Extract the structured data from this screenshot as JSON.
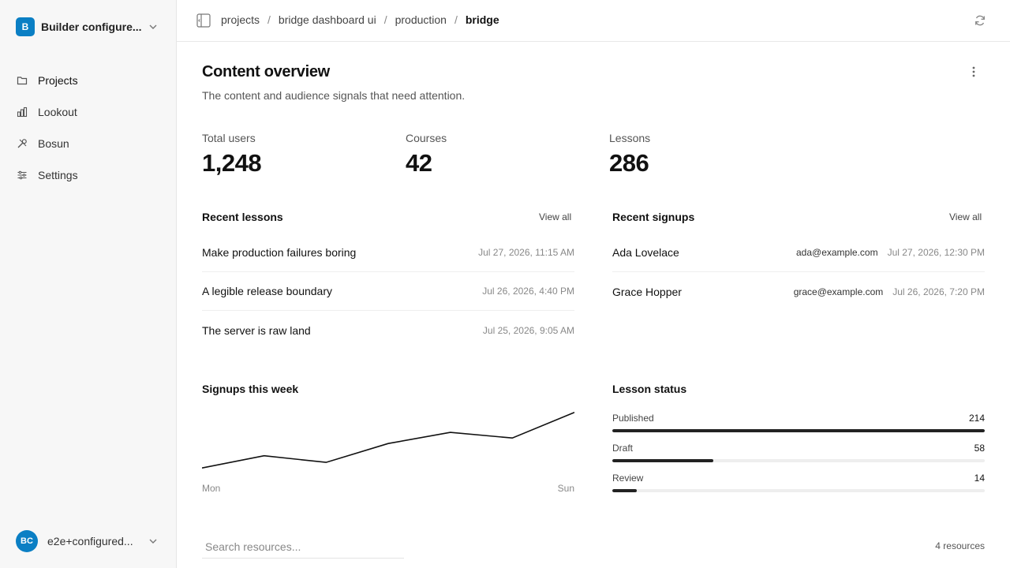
{
  "sidebar": {
    "org": {
      "badge": "B",
      "name": "Builder configure..."
    },
    "items": [
      {
        "label": "Projects",
        "icon": "folder-icon"
      },
      {
        "label": "Lookout",
        "icon": "bar-chart-icon"
      },
      {
        "label": "Bosun",
        "icon": "tools-icon"
      },
      {
        "label": "Settings",
        "icon": "sliders-icon"
      }
    ],
    "user": {
      "initials": "BC",
      "name": "e2e+configured..."
    }
  },
  "breadcrumb": [
    "projects",
    "bridge dashboard ui",
    "production",
    "bridge"
  ],
  "page": {
    "title": "Content overview",
    "subtitle": "The content and audience signals that need attention."
  },
  "stats": [
    {
      "label": "Total users",
      "value": "1,248"
    },
    {
      "label": "Courses",
      "value": "42"
    },
    {
      "label": "Lessons",
      "value": "286"
    }
  ],
  "recent_lessons": {
    "title": "Recent lessons",
    "view_all": "View all",
    "rows": [
      {
        "title": "Make production failures boring",
        "time": "Jul 27, 2026, 11:15 AM"
      },
      {
        "title": "A legible release boundary",
        "time": "Jul 26, 2026, 4:40 PM"
      },
      {
        "title": "The server is raw land",
        "time": "Jul 25, 2026, 9:05 AM"
      }
    ]
  },
  "recent_signups": {
    "title": "Recent signups",
    "view_all": "View all",
    "rows": [
      {
        "name": "Ada Lovelace",
        "email": "ada@example.com",
        "time": "Jul 27, 2026, 12:30 PM"
      },
      {
        "name": "Grace Hopper",
        "email": "grace@example.com",
        "time": "Jul 26, 2026, 7:20 PM"
      }
    ]
  },
  "signups_chart": {
    "title": "Signups this week",
    "x_start": "Mon",
    "x_end": "Sun"
  },
  "chart_data": {
    "type": "line",
    "x": [
      "Mon",
      "Tue",
      "Wed",
      "Thu",
      "Fri",
      "Sat",
      "Sun"
    ],
    "values": [
      10,
      21,
      15,
      32,
      42,
      37,
      60
    ],
    "ylim": [
      8,
      62
    ]
  },
  "lesson_status": {
    "title": "Lesson status",
    "items": [
      {
        "label": "Published",
        "count": "214",
        "fraction": 1.0
      },
      {
        "label": "Draft",
        "count": "58",
        "fraction": 0.271
      },
      {
        "label": "Review",
        "count": "14",
        "fraction": 0.065
      }
    ]
  },
  "search": {
    "placeholder": "Search resources..."
  },
  "resource_count": "4 resources",
  "colors": {
    "accent": "#0b7fc4",
    "line": "#111111",
    "bar": "#222222"
  }
}
